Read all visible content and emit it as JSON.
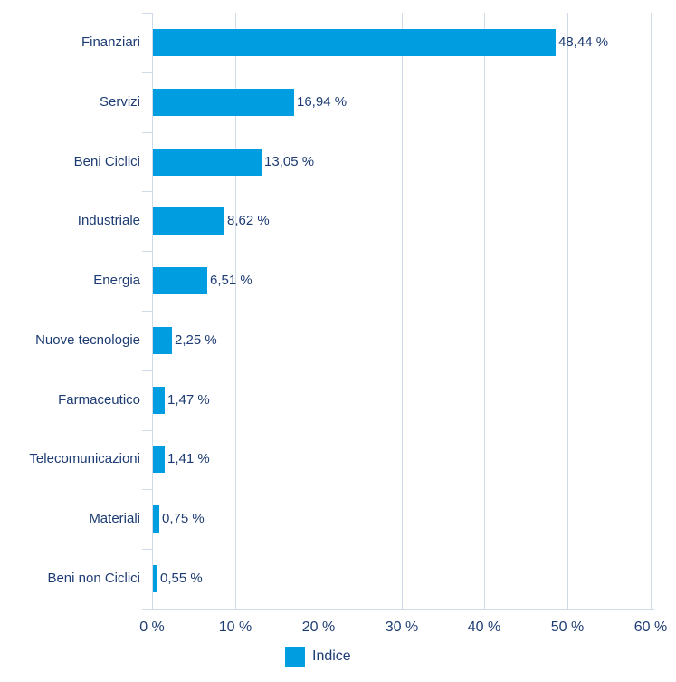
{
  "chart_data": {
    "type": "bar",
    "orientation": "horizontal",
    "title": "",
    "categories": [
      "Finanziari",
      "Servizi",
      "Beni Ciclici",
      "Industriale",
      "Energia",
      "Nuove tecnologie",
      "Farmaceutico",
      "Telecomunicazioni",
      "Materiali",
      "Beni non Ciclici"
    ],
    "values": [
      48.44,
      16.94,
      13.05,
      8.62,
      6.51,
      2.25,
      1.47,
      1.41,
      0.75,
      0.55
    ],
    "value_labels": [
      "48,44 %",
      "16,94 %",
      "13,05 %",
      "8,62 %",
      "6,51 %",
      "2,25 %",
      "1,47 %",
      "1,41 %",
      "0,75 %",
      "0,55 %"
    ],
    "xlabel": "",
    "ylabel": "",
    "xlim": [
      0,
      60
    ],
    "x_ticks": [
      0,
      10,
      20,
      30,
      40,
      50,
      60
    ],
    "x_tick_labels": [
      "0 %",
      "10 %",
      "20 %",
      "30 %",
      "40 %",
      "50 %",
      "60 %"
    ],
    "grid": true,
    "legend_position": "bottom",
    "legend": [
      {
        "label": "Indice",
        "color": "#009EE0"
      }
    ],
    "colors": {
      "bar": "#009EE0",
      "text": "#1D3C73",
      "grid": "#CFDBE8"
    }
  }
}
